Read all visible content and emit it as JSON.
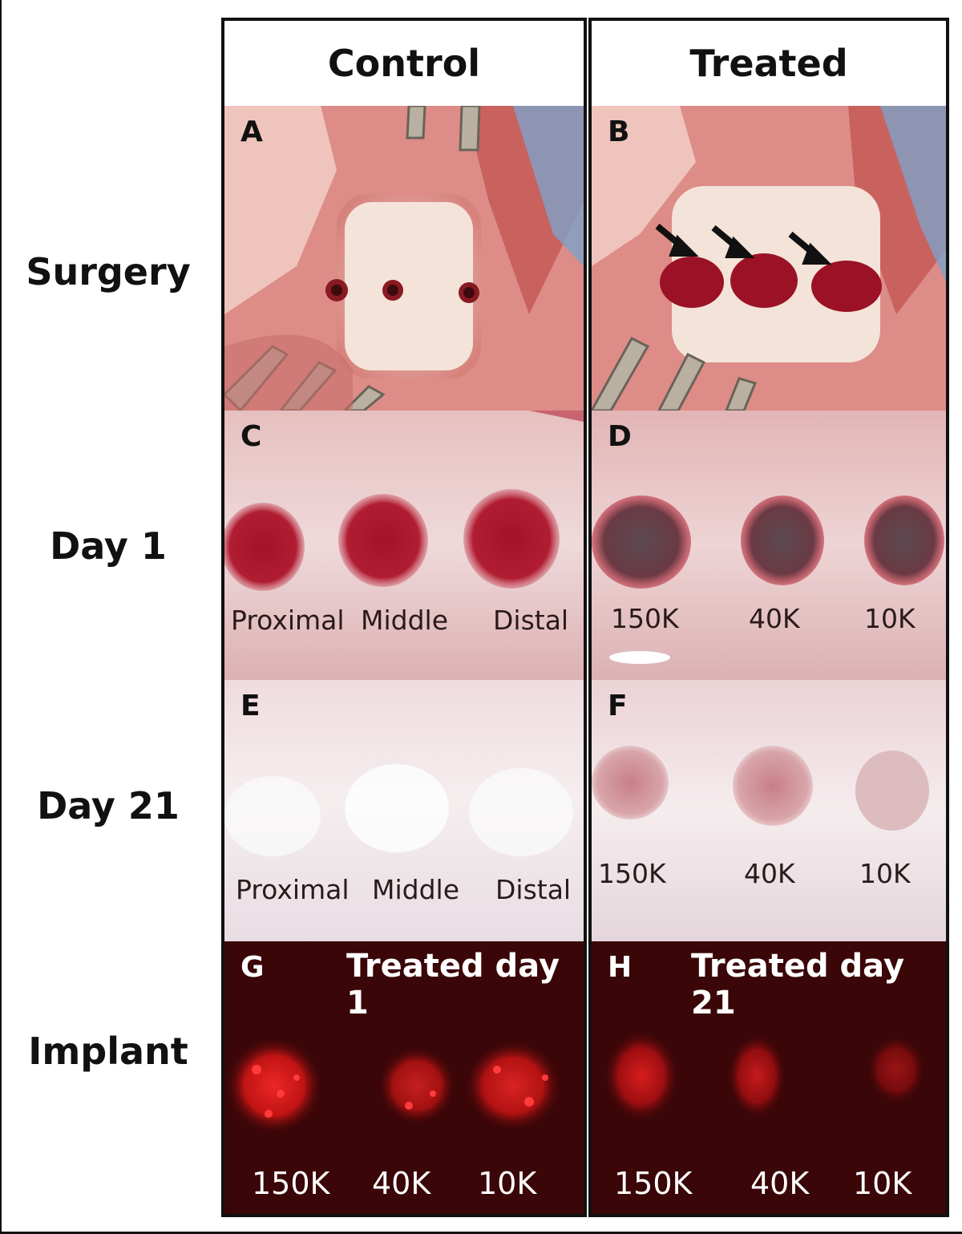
{
  "columns": {
    "control": "Control",
    "treated": "Treated"
  },
  "rows": {
    "surgery": "Surgery",
    "day1": "Day 1",
    "day21": "Day 21",
    "implant": "Implant"
  },
  "panels": {
    "A": {
      "letter": "A"
    },
    "B": {
      "letter": "B"
    },
    "C": {
      "letter": "C",
      "labels": [
        "Proximal",
        "Middle",
        "Distal"
      ]
    },
    "D": {
      "letter": "D",
      "labels": [
        "150K",
        "40K",
        "10K"
      ]
    },
    "E": {
      "letter": "E",
      "labels": [
        "Proximal",
        "Middle",
        "Distal"
      ]
    },
    "F": {
      "letter": "F",
      "labels": [
        "150K",
        "40K",
        "10K"
      ]
    },
    "G": {
      "letter": "G",
      "title": "Treated day 1",
      "labels": [
        "150K",
        "40K",
        "10K"
      ]
    },
    "H": {
      "letter": "H",
      "title": "Treated day 21",
      "labels": [
        "150K",
        "40K",
        "10K"
      ]
    }
  },
  "colors": {
    "tissue": "#e6a0a0",
    "cartilage": "#f2ddd0",
    "blood": "#9b1226",
    "fluorescence_bg": "#3a0608",
    "fluorescence": "#ff2a2a"
  }
}
